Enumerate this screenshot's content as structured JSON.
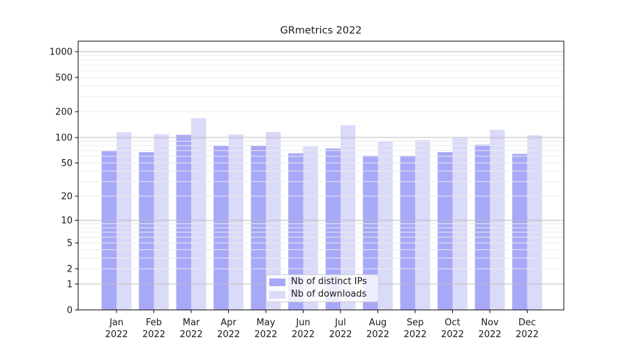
{
  "chart_data": {
    "type": "bar",
    "title": "GRmetrics 2022",
    "categories": [
      "Jan 2022",
      "Feb 2022",
      "Mar 2022",
      "Apr 2022",
      "May 2022",
      "Jun 2022",
      "Jul 2022",
      "Aug 2022",
      "Sep 2022",
      "Oct 2022",
      "Nov 2022",
      "Dec 2022"
    ],
    "month_labels": [
      "Jan",
      "Feb",
      "Mar",
      "Apr",
      "May",
      "Jun",
      "Jul",
      "Aug",
      "Sep",
      "Oct",
      "Nov",
      "Dec"
    ],
    "year_label": "2022",
    "series": [
      {
        "name": "Nb of distinct IPs",
        "color": "#a8a8f8",
        "values": [
          69,
          67,
          107,
          80,
          80,
          65,
          74,
          61,
          61,
          67,
          82,
          64
        ]
      },
      {
        "name": "Nb of downloads",
        "color": "#dadaf9",
        "values": [
          115,
          109,
          168,
          108,
          116,
          78,
          139,
          90,
          93,
          98,
          123,
          106
        ]
      }
    ],
    "y_axis": {
      "scale": "log1p",
      "ticks": [
        0,
        1,
        2,
        5,
        10,
        20,
        50,
        100,
        200,
        500,
        1000
      ],
      "range": [
        0,
        1000
      ]
    },
    "grid": {
      "major": true,
      "minor": true,
      "major_color": "#bdbdbd",
      "minor_color": "#ececec"
    },
    "legend": {
      "position": "lower-center-inside"
    }
  }
}
